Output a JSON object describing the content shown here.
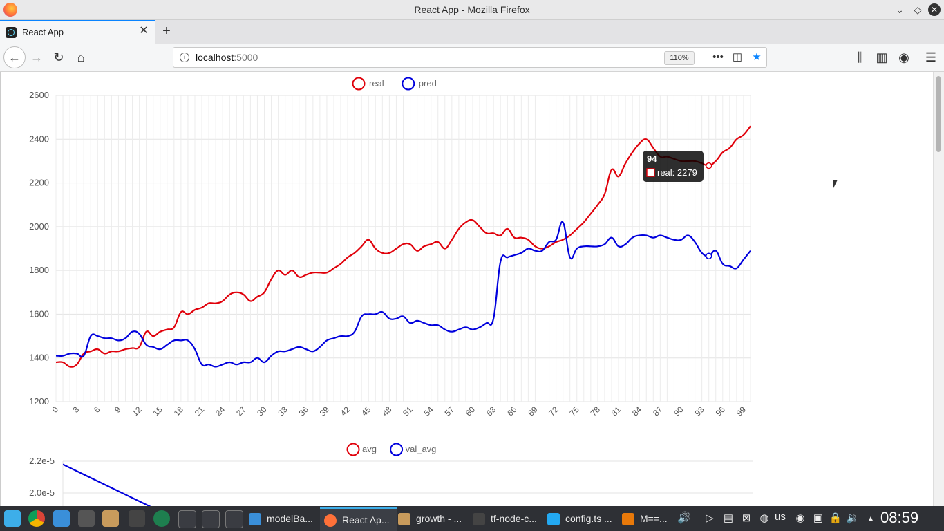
{
  "window": {
    "title": "React App - Mozilla Firefox"
  },
  "tab": {
    "label": "React App"
  },
  "nav": {
    "url_host": "localhost",
    "url_port": ":5000",
    "zoom": "110%"
  },
  "chart_data": [
    {
      "type": "line",
      "legend_position": "top-center",
      "grid": true,
      "ylim": [
        1200,
        2600
      ],
      "yticks": [
        "2600",
        "2400",
        "2200",
        "2000",
        "1800",
        "1600",
        "1400",
        "1200"
      ],
      "xticks": [
        "0",
        "3",
        "6",
        "9",
        "12",
        "15",
        "18",
        "21",
        "24",
        "27",
        "30",
        "33",
        "36",
        "39",
        "42",
        "45",
        "48",
        "51",
        "54",
        "57",
        "60",
        "63",
        "66",
        "69",
        "72",
        "75",
        "78",
        "81",
        "84",
        "87",
        "90",
        "93",
        "96",
        "99"
      ],
      "x": [
        0,
        1,
        2,
        3,
        4,
        5,
        6,
        7,
        8,
        9,
        10,
        11,
        12,
        13,
        14,
        15,
        16,
        17,
        18,
        19,
        20,
        21,
        22,
        23,
        24,
        25,
        26,
        27,
        28,
        29,
        30,
        31,
        32,
        33,
        34,
        35,
        36,
        37,
        38,
        39,
        40,
        41,
        42,
        43,
        44,
        45,
        46,
        47,
        48,
        49,
        50,
        51,
        52,
        53,
        54,
        55,
        56,
        57,
        58,
        59,
        60,
        61,
        62,
        63,
        64,
        65,
        66,
        67,
        68,
        69,
        70,
        71,
        72,
        73,
        74,
        75,
        76,
        77,
        78,
        79,
        80,
        81,
        82,
        83,
        84,
        85,
        86,
        87,
        88,
        89,
        90,
        91,
        92,
        93,
        94,
        95,
        96,
        97,
        98,
        99,
        100
      ],
      "series": [
        {
          "name": "real",
          "color": "#e0000a",
          "values": [
            1380,
            1380,
            1360,
            1370,
            1420,
            1430,
            1440,
            1420,
            1430,
            1430,
            1440,
            1445,
            1450,
            1520,
            1500,
            1520,
            1530,
            1540,
            1610,
            1600,
            1620,
            1630,
            1650,
            1650,
            1660,
            1690,
            1700,
            1690,
            1660,
            1680,
            1700,
            1760,
            1800,
            1780,
            1800,
            1770,
            1780,
            1790,
            1790,
            1790,
            1810,
            1830,
            1860,
            1880,
            1910,
            1940,
            1900,
            1880,
            1880,
            1900,
            1920,
            1920,
            1890,
            1910,
            1920,
            1930,
            1900,
            1940,
            1990,
            2020,
            2030,
            2000,
            1970,
            1970,
            1960,
            1990,
            1950,
            1950,
            1940,
            1910,
            1900,
            1910,
            1930,
            1940,
            1960,
            1990,
            2020,
            2060,
            2100,
            2150,
            2260,
            2230,
            2290,
            2340,
            2380,
            2400,
            2360,
            2320,
            2320,
            2310,
            2300,
            2300,
            2300,
            2290,
            2279,
            2300,
            2340,
            2360,
            2400,
            2420,
            2460
          ]
        },
        {
          "name": "pred",
          "color": "#0000dd",
          "values": [
            1410,
            1410,
            1420,
            1420,
            1410,
            1500,
            1500,
            1490,
            1490,
            1480,
            1490,
            1520,
            1510,
            1460,
            1450,
            1440,
            1460,
            1480,
            1480,
            1480,
            1440,
            1370,
            1370,
            1360,
            1370,
            1380,
            1370,
            1380,
            1380,
            1400,
            1380,
            1410,
            1430,
            1430,
            1440,
            1450,
            1440,
            1430,
            1450,
            1480,
            1490,
            1500,
            1500,
            1520,
            1590,
            1600,
            1600,
            1610,
            1580,
            1580,
            1590,
            1560,
            1570,
            1560,
            1550,
            1550,
            1530,
            1520,
            1530,
            1540,
            1530,
            1540,
            1560,
            1580,
            1840,
            1860,
            1870,
            1880,
            1900,
            1890,
            1890,
            1930,
            1940,
            2020,
            1860,
            1900,
            1910,
            1910,
            1910,
            1920,
            1950,
            1910,
            1920,
            1950,
            1960,
            1960,
            1950,
            1960,
            1950,
            1940,
            1940,
            1960,
            1930,
            1880,
            1866,
            1890,
            1830,
            1820,
            1810,
            1850,
            1890
          ]
        }
      ],
      "tooltip": {
        "title": "94",
        "label": "real: 2279"
      }
    },
    {
      "type": "line",
      "legend_position": "top-center",
      "grid": true,
      "yticks": [
        "2.2e-5",
        "2.0e-5"
      ],
      "series": [
        {
          "name": "avg",
          "color": "#e0000a",
          "values": []
        },
        {
          "name": "val_avg",
          "color": "#0000dd",
          "values": [
            2.18e-05,
            1.96e-05
          ]
        }
      ]
    }
  ],
  "taskbar": {
    "tasks": [
      "modelBa...",
      "React Ap...",
      "growth - ...",
      "tf-node-c...",
      "config.ts ...",
      "M==..."
    ],
    "keyboard": "us",
    "clock": "08:59"
  },
  "icons": [
    "firefox-icon",
    "minimize-icon",
    "restore-icon",
    "close-icon",
    "back-icon",
    "forward-icon",
    "reload-icon",
    "home-icon",
    "info-icon",
    "more-icon",
    "pocket-icon",
    "bookmark-star-icon",
    "library-icon",
    "sidebar-icon",
    "account-icon",
    "menu-icon"
  ]
}
